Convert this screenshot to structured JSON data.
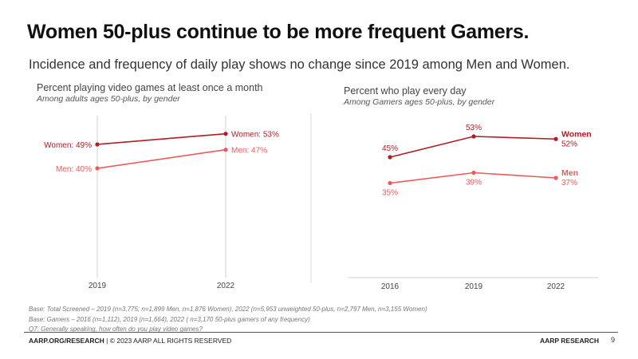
{
  "header": {
    "title": "Women 50-plus continue to be more frequent Gamers.",
    "subtitle": "Incidence and frequency of daily play shows no change since 2019 among Men and Women."
  },
  "colors": {
    "women": "#b31b25",
    "men": "#ee5a5a",
    "axis": "#d0d0d0"
  },
  "chart_data": [
    {
      "type": "line",
      "title": "Percent playing video games at least once a month",
      "subtitle": "Among adults ages 50-plus, by gender",
      "categories": [
        "2019",
        "2022"
      ],
      "series": [
        {
          "name": "Women",
          "values": [
            49,
            53
          ],
          "labels": [
            "Women: 49%",
            "Women: 53%"
          ]
        },
        {
          "name": "Men",
          "values": [
            40,
            47
          ],
          "labels": [
            "Men: 40%",
            "Men: 47%"
          ]
        }
      ],
      "ylim": [
        0,
        60
      ],
      "grid": "vertical"
    },
    {
      "type": "line",
      "title": "Percent who play every day",
      "subtitle": "Among Gamers ages 50-plus, by gender",
      "categories": [
        "2016",
        "2019",
        "2022"
      ],
      "series": [
        {
          "name": "Women",
          "values": [
            45,
            53,
            52
          ],
          "labels": [
            "45%",
            "53%",
            "52%"
          ]
        },
        {
          "name": "Men",
          "values": [
            35,
            39,
            37
          ],
          "labels": [
            "35%",
            "39%",
            "37%"
          ]
        }
      ],
      "ylim": [
        0,
        60
      ],
      "legend": "right"
    }
  ],
  "notes": [
    "Base: Total Screened – 2019 (n=3,775; n=1,899 Men, n=1,876 Women), 2022 (n=5,953 unweighted 50-plus, n=2,797 Men, n=3,155 Women)",
    "Base: Gamers – 2016 (n=1,112), 2019 (n=1,664), 2022 ( n=3,170 50-plus gamers of any frequency)",
    "Q7: Generally speaking, how often do you play video games?"
  ],
  "footer": {
    "left_bold": "AARP.ORG/RESEARCH",
    "left_rest": " | © 2023 AARP ALL RIGHTS RESERVED",
    "right": "AARP RESEARCH",
    "page": "9"
  }
}
